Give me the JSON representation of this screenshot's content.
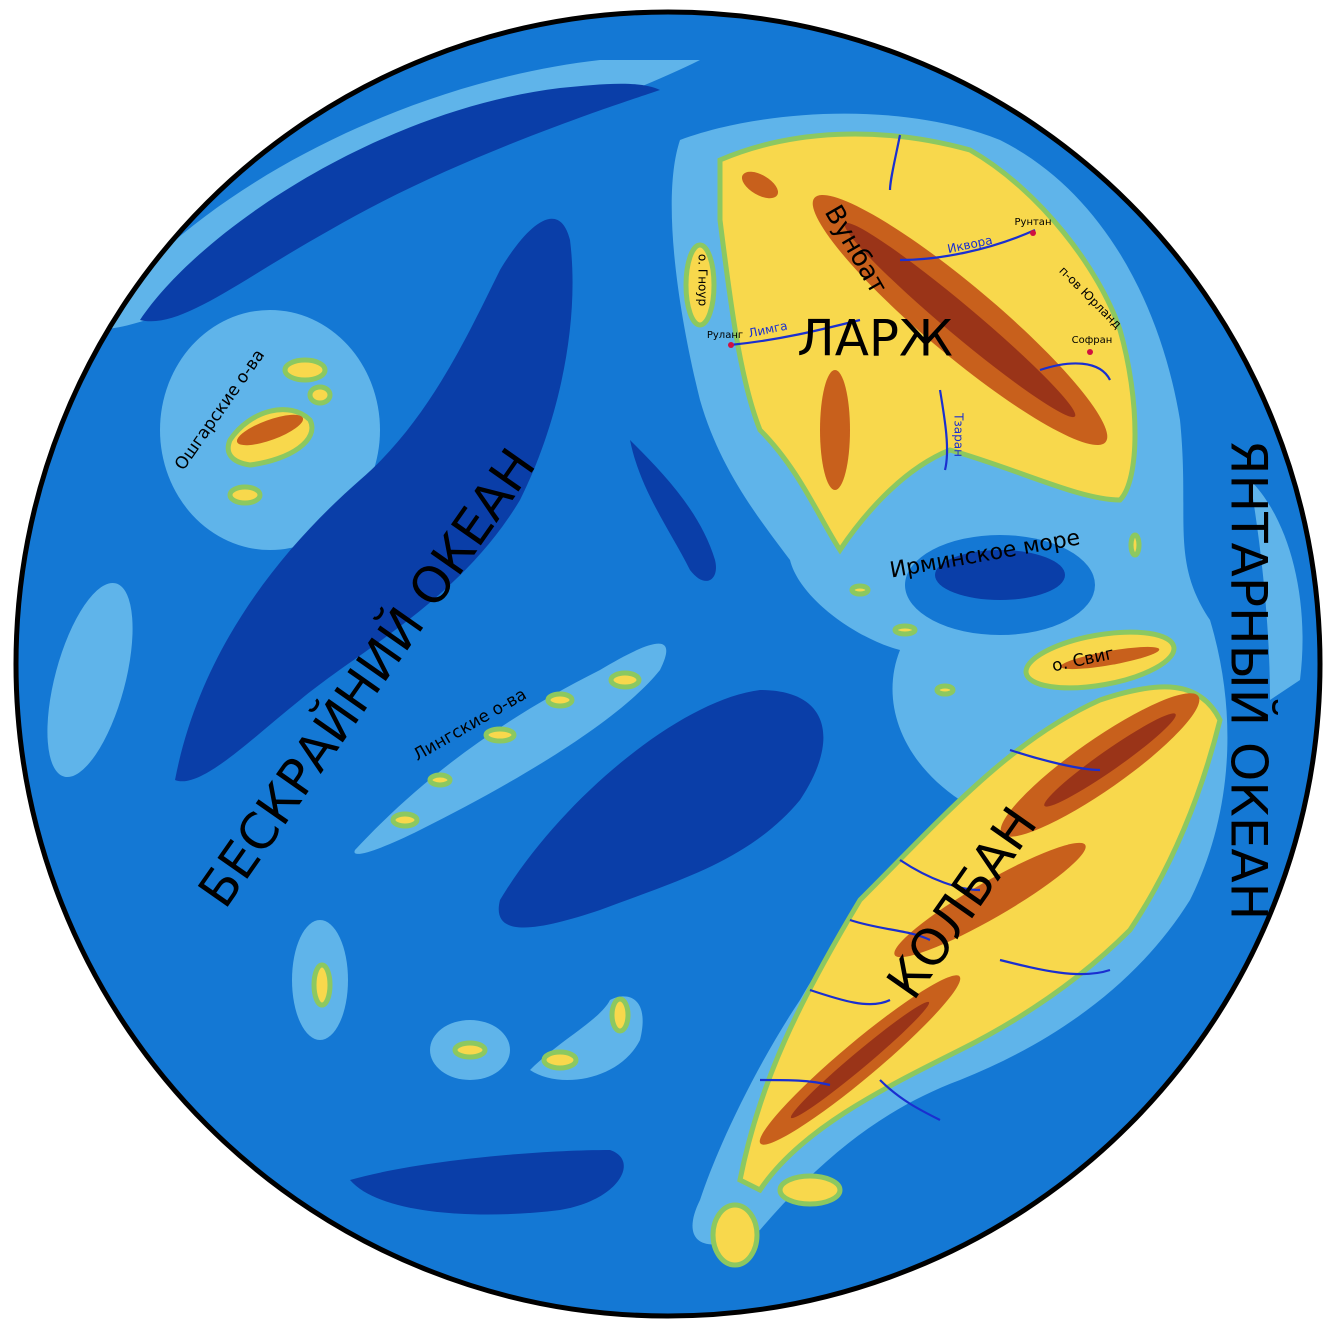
{
  "map": {
    "oceans": [
      "БЕСКРАЙНИЙ ОКЕАН",
      "ЯНТАРНЫЙ ОКЕАН"
    ],
    "seas": [
      "Ирминское море"
    ],
    "continents": [
      "ЛАРЖ",
      "КОЛБАН"
    ],
    "mountains": [
      "Вунбат"
    ],
    "islands": [
      "Ошгарские о-ва",
      "Лингские о-ва",
      "о. Свиг",
      "о. Гноур"
    ],
    "peninsulas": [
      "п-ов Юрланд"
    ],
    "rivers": [
      "Лимга",
      "Иквора",
      "Тзаран"
    ],
    "cities": [
      "Рунтан",
      "Софран",
      "Руланг"
    ]
  }
}
